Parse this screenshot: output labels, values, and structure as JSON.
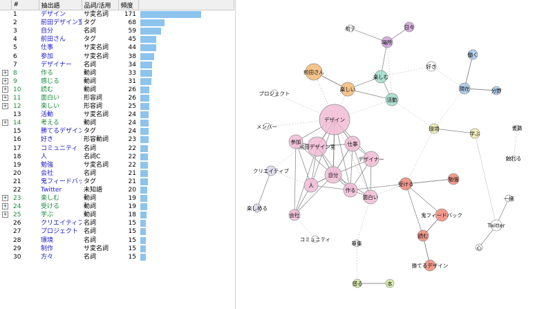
{
  "table": {
    "headers": {
      "num": "#",
      "word": "抽出語",
      "pos": "品詞/活用",
      "freq": "頻度"
    },
    "max_freq": 171,
    "rows": [
      {
        "num": "1",
        "word": "デザイン",
        "pos": "サ変名詞",
        "freq": 171,
        "expand": false
      },
      {
        "num": "2",
        "word": "前田デザイン室",
        "pos": "タグ",
        "freq": 68,
        "expand": false
      },
      {
        "num": "3",
        "word": "自分",
        "pos": "名詞",
        "freq": 59,
        "expand": false
      },
      {
        "num": "4",
        "word": "前田さん",
        "pos": "タグ",
        "freq": 45,
        "expand": false
      },
      {
        "num": "5",
        "word": "仕事",
        "pos": "サ変名詞",
        "freq": 44,
        "expand": false
      },
      {
        "num": "6",
        "word": "参加",
        "pos": "サ変名詞",
        "freq": 38,
        "expand": false
      },
      {
        "num": "7",
        "word": "デザイナー",
        "pos": "名詞",
        "freq": 34,
        "expand": false
      },
      {
        "num": "8",
        "word": "作る",
        "pos": "動詞",
        "freq": 33,
        "expand": true
      },
      {
        "num": "9",
        "word": "感じる",
        "pos": "動詞",
        "freq": 31,
        "expand": true
      },
      {
        "num": "10",
        "word": "読む",
        "pos": "動詞",
        "freq": 26,
        "expand": true
      },
      {
        "num": "11",
        "word": "面白い",
        "pos": "形容詞",
        "freq": 26,
        "expand": true
      },
      {
        "num": "12",
        "word": "楽しい",
        "pos": "形容詞",
        "freq": 25,
        "expand": true
      },
      {
        "num": "13",
        "word": "活動",
        "pos": "サ変名詞",
        "freq": 24,
        "expand": false
      },
      {
        "num": "14",
        "word": "考える",
        "pos": "動詞",
        "freq": 24,
        "expand": true
      },
      {
        "num": "15",
        "word": "勝てるデザイン",
        "pos": "タグ",
        "freq": 24,
        "expand": false
      },
      {
        "num": "16",
        "word": "好き",
        "pos": "形容動詞",
        "freq": 23,
        "expand": false
      },
      {
        "num": "17",
        "word": "コミュニティ",
        "pos": "名詞",
        "freq": 22,
        "expand": false
      },
      {
        "num": "18",
        "word": "人",
        "pos": "名詞C",
        "freq": 22,
        "expand": false
      },
      {
        "num": "19",
        "word": "勉強",
        "pos": "サ変名詞",
        "freq": 22,
        "expand": false
      },
      {
        "num": "20",
        "word": "会社",
        "pos": "名詞",
        "freq": 21,
        "expand": false
      },
      {
        "num": "21",
        "word": "鬼フィードバック",
        "pos": "タグ",
        "freq": 21,
        "expand": false
      },
      {
        "num": "22",
        "word": "Twitter",
        "pos": "未知語",
        "freq": 20,
        "expand": false
      },
      {
        "num": "23",
        "word": "楽しむ",
        "pos": "動詞",
        "freq": 19,
        "expand": true
      },
      {
        "num": "24",
        "word": "受ける",
        "pos": "動詞",
        "freq": 19,
        "expand": true
      },
      {
        "num": "25",
        "word": "学ぶ",
        "pos": "動詞",
        "freq": 18,
        "expand": true
      },
      {
        "num": "26",
        "word": "クリエイティブ",
        "pos": "名詞",
        "freq": 15,
        "expand": false
      },
      {
        "num": "27",
        "word": "プロジェクト",
        "pos": "名詞",
        "freq": 15,
        "expand": false
      },
      {
        "num": "28",
        "word": "環境",
        "pos": "名詞",
        "freq": 15,
        "expand": false
      },
      {
        "num": "29",
        "word": "制作",
        "pos": "サ変名詞",
        "freq": 15,
        "expand": false
      },
      {
        "num": "30",
        "word": "方々",
        "pos": "名詞",
        "freq": 15,
        "expand": false
      }
    ]
  },
  "network": {
    "nodes": [
      {
        "label": "デザイン",
        "color": "#f2bcd6"
      },
      {
        "label": "前田デザイン室",
        "color": "#f2bcd6"
      },
      {
        "label": "自分",
        "color": "#f2bcd6"
      },
      {
        "label": "仕事",
        "color": "#f2bcd6"
      },
      {
        "label": "参加",
        "color": "#f2bcd6"
      },
      {
        "label": "デザイナー",
        "color": "#f2bcd6"
      },
      {
        "label": "人",
        "color": "#f2bcd6"
      },
      {
        "label": "作る",
        "color": "#f2bcd6"
      },
      {
        "label": "面白い",
        "color": "#f2bcd6"
      },
      {
        "label": "会社",
        "color": "#f2bcd6"
      },
      {
        "label": "前田さん",
        "color": "#f5b877"
      },
      {
        "label": "楽しい",
        "color": "#f5b877"
      },
      {
        "label": "楽しむ",
        "color": "#9fdcc9"
      },
      {
        "label": "活動",
        "color": "#9fdcc9"
      },
      {
        "label": "受ける",
        "color": "#f08878"
      },
      {
        "label": "勉強",
        "color": "#f08878"
      },
      {
        "label": "鬼フィードバック",
        "color": "#f08878"
      },
      {
        "label": "読む",
        "color": "#f08878"
      },
      {
        "label": "勝てるデザイン",
        "color": "#f08878"
      },
      {
        "label": "環境",
        "color": "#f5f0b0"
      },
      {
        "label": "学ぶ",
        "color": "#f5f0b0"
      },
      {
        "label": "現在",
        "color": "#a6c8e8"
      },
      {
        "label": "働く",
        "color": "#a6c8e8"
      },
      {
        "label": "分野",
        "color": "#a6c8e8"
      },
      {
        "label": "場所",
        "color": "#d0a0d8"
      },
      {
        "label": "日々",
        "color": "#d0a0d8"
      },
      {
        "label": "クリエイティブ",
        "color": "#d8d8ec"
      },
      {
        "label": "楽しめる",
        "color": "#d8d8ec"
      },
      {
        "label": "好き",
        "color": "#ffffff"
      },
      {
        "label": "前テ",
        "color": "#ffffff"
      },
      {
        "label": "プロジェクト",
        "color": "#ffffff"
      },
      {
        "label": "メンバー",
        "color": "#ffffff"
      },
      {
        "label": "コミュニティ",
        "color": "#ffffff"
      },
      {
        "label": "尊集",
        "color": "#ffffff"
      },
      {
        "label": "感る",
        "color": "#d8eca0"
      },
      {
        "label": "本",
        "color": "#d8eca0"
      },
      {
        "label": "書籍",
        "color": "#ffffff"
      },
      {
        "label": "触れる",
        "color": "#ffffff"
      },
      {
        "label": "一緒",
        "color": "#ffffff"
      },
      {
        "label": "Twitter",
        "color": "#ffffff"
      },
      {
        "label": "心",
        "color": "#ffffff"
      }
    ]
  }
}
